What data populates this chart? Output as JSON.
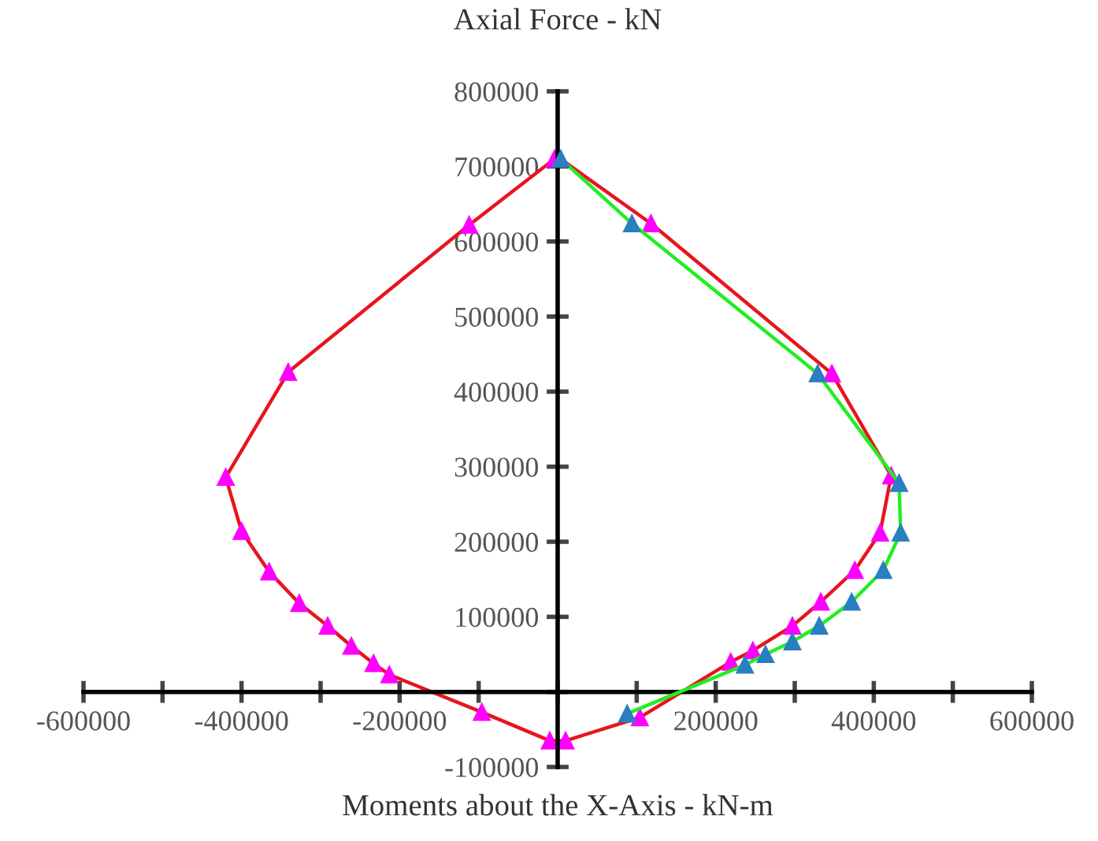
{
  "chart_data": {
    "type": "line",
    "xlabel": "Moments about the X-Axis - kN-m",
    "ylabel": "Axial Force - kN",
    "xlim": [
      -600000,
      600000
    ],
    "ylim": [
      -100000,
      800000
    ],
    "xticks": [
      -600000,
      {
        "value": -500000,
        "label": null
      },
      -400000,
      {
        "value": -300000,
        "label": null
      },
      -200000,
      {
        "value": -100000,
        "label": null
      },
      {
        "value": 0,
        "label": null
      },
      {
        "value": 100000,
        "label": null
      },
      200000,
      {
        "value": 300000,
        "label": null
      },
      400000,
      {
        "value": 500000,
        "label": null
      },
      600000
    ],
    "yticks": [
      -100000,
      {
        "value": 0,
        "label": null
      },
      100000,
      200000,
      300000,
      400000,
      500000,
      600000,
      700000,
      800000
    ],
    "grid": false,
    "legend": false,
    "marker": "triangle",
    "line_style": "solid",
    "series": [
      {
        "color": "#e8141e",
        "colors": [
          "#ff00ff",
          "#ff00ff",
          "#ff00ff",
          "#ff00ff",
          "#ff00ff",
          "#ff00ff",
          "#ff00ff",
          "#ff00ff",
          "#ff00ff",
          "#ff00ff",
          "#ff00ff",
          "#ff00ff",
          "#ff00ff",
          "#ff00ff",
          "#ff00ff",
          "#ff00ff",
          "#ff00ff",
          "#ff00ff",
          "#ff00ff",
          "#ff00ff",
          "#ff00ff",
          "#ff00ff",
          "#ff00ff",
          "#ff00ff",
          "#ff00ff"
        ],
        "x": [
          -4000,
          -112000,
          -341000,
          -420000,
          -400000,
          -365000,
          -327000,
          -291000,
          -261000,
          -233000,
          -213000,
          -96000,
          -10000,
          10000,
          104000,
          219000,
          247000,
          297000,
          333000,
          376000,
          408000,
          422000,
          347000,
          118000,
          1000
        ],
        "values": [
          710000,
          622000,
          426000,
          286000,
          214000,
          160000,
          118000,
          88000,
          61000,
          38000,
          23000,
          -27000,
          -65000,
          -65000,
          -34000,
          40000,
          55000,
          88000,
          120000,
          162000,
          212000,
          288000,
          424000,
          624000,
          712000
        ]
      },
      {
        "color": "#22ee22",
        "colors": [
          "#2a7fc0",
          "#2a7fc0",
          "#2a7fc0",
          "#2a7fc0",
          "#2a7fc0",
          "#2a7fc0",
          "#2a7fc0",
          "#2a7fc0",
          "#2a7fc0",
          "#2a7fc0",
          "#2a7fc0",
          "#2a7fc0"
        ],
        "x": [
          4000,
          94000,
          329000,
          432000,
          434000,
          412000,
          372000,
          331000,
          297000,
          263000,
          237000,
          88000
        ],
        "values": [
          710000,
          624000,
          424000,
          278000,
          212000,
          162000,
          120000,
          88000,
          67000,
          50000,
          36000,
          -29000
        ]
      }
    ]
  }
}
